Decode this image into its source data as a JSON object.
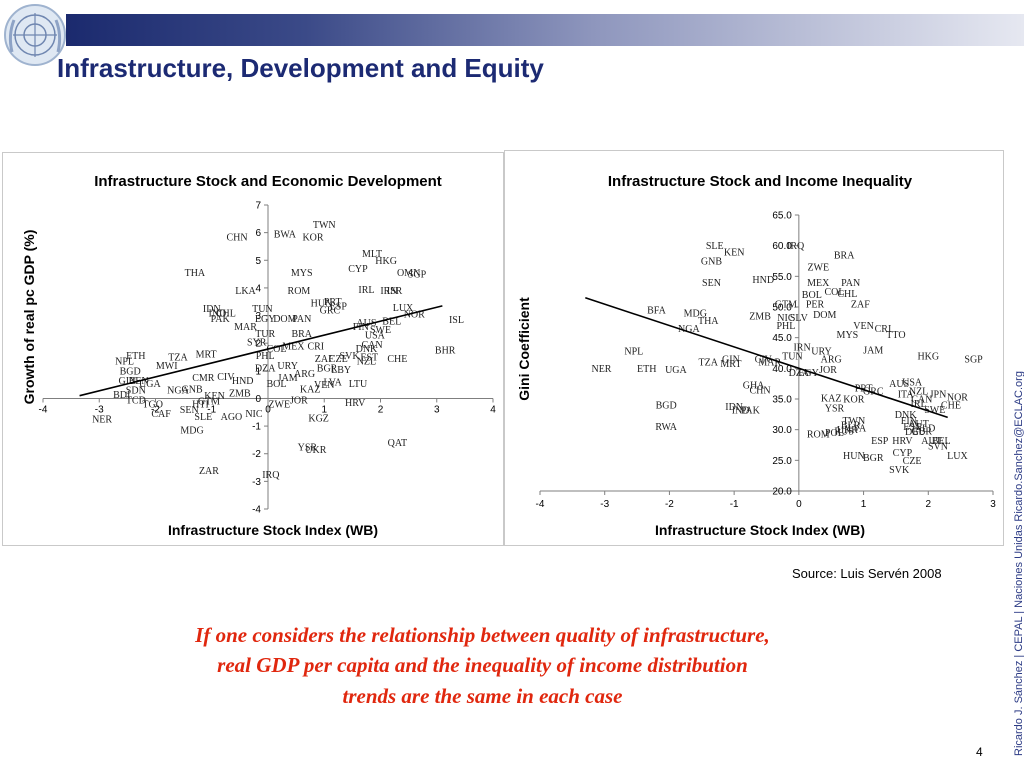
{
  "slide": {
    "title": "Infrastructure, Development and Equity",
    "source": "Source: Luis Servén 2008",
    "quote_lines": [
      "If one considers the relationship between quality of infrastructure,",
      "real GDP per capita and the inequality of income distribution",
      "trends are the same in each case"
    ],
    "sidebar": "Ricardo J. Sánchez | CEPAL | Naciones Unidas   Ricardo.Sanchez@ECLAC.org",
    "page_number": "4",
    "colors": {
      "title": "#1c2a73",
      "quote": "#e0270e",
      "sidebar": "#2c3b85",
      "banner_dark": "#1b2a6e"
    },
    "logo_icon": "un-emblem-icon"
  },
  "chart_data": [
    {
      "type": "scatter",
      "title": "Infrastructure Stock and Economic Development",
      "xlabel": "Infrastructure Stock Index (WB)",
      "ylabel": "Growth of real pc GDP (%)",
      "xlim": [
        -4,
        4
      ],
      "ylim": [
        -4,
        7
      ],
      "xticks": [
        "-4",
        "-3",
        "-2",
        "-1",
        "0",
        "1",
        "2",
        "3",
        "4"
      ],
      "yticks": [
        "-4",
        "-3",
        "-2",
        "-1",
        "0",
        "1",
        "2",
        "3",
        "4",
        "5",
        "6",
        "7"
      ],
      "trendline": {
        "x": [
          -3.35,
          3.1
        ],
        "y": [
          0.1,
          3.35
        ]
      },
      "points": [
        {
          "label": "TWN",
          "x": 1.0,
          "y": 6.3
        },
        {
          "label": "BWA",
          "x": 0.3,
          "y": 5.95
        },
        {
          "label": "KOR",
          "x": 0.8,
          "y": 5.85
        },
        {
          "label": "CHN",
          "x": -0.55,
          "y": 5.85
        },
        {
          "label": "MLT",
          "x": 1.85,
          "y": 5.25
        },
        {
          "label": "HKG",
          "x": 2.1,
          "y": 5.0
        },
        {
          "label": "THA",
          "x": -1.3,
          "y": 4.55
        },
        {
          "label": "MYS",
          "x": 0.6,
          "y": 4.55
        },
        {
          "label": "CYP",
          "x": 1.6,
          "y": 4.7
        },
        {
          "label": "OMN",
          "x": 2.5,
          "y": 4.55
        },
        {
          "label": "SGP",
          "x": 2.65,
          "y": 4.5
        },
        {
          "label": "LKA",
          "x": -0.4,
          "y": 3.9
        },
        {
          "label": "ROM",
          "x": 0.55,
          "y": 3.9
        },
        {
          "label": "IRL",
          "x": 1.75,
          "y": 3.95
        },
        {
          "label": "IRN",
          "x": 2.15,
          "y": 3.9
        },
        {
          "label": "ISR",
          "x": 2.25,
          "y": 3.9
        },
        {
          "label": "IDN",
          "x": -1.0,
          "y": 3.25
        },
        {
          "label": "IND",
          "x": -0.9,
          "y": 3.1
        },
        {
          "label": "CHL",
          "x": -0.75,
          "y": 3.1
        },
        {
          "label": "PAK",
          "x": -0.85,
          "y": 2.9
        },
        {
          "label": "TUN",
          "x": -0.1,
          "y": 3.25
        },
        {
          "label": "EGY",
          "x": -0.05,
          "y": 2.9
        },
        {
          "label": "DOM",
          "x": 0.3,
          "y": 2.9
        },
        {
          "label": "PAN",
          "x": 0.6,
          "y": 2.9
        },
        {
          "label": "HUN",
          "x": 0.95,
          "y": 3.45
        },
        {
          "label": "GRC",
          "x": 1.1,
          "y": 3.2
        },
        {
          "label": "ESP",
          "x": 1.25,
          "y": 3.35
        },
        {
          "label": "PRT",
          "x": 1.15,
          "y": 3.5
        },
        {
          "label": "LUX",
          "x": 2.4,
          "y": 3.3
        },
        {
          "label": "NOR",
          "x": 2.6,
          "y": 3.05
        },
        {
          "label": "ISL",
          "x": 3.35,
          "y": 2.85
        },
        {
          "label": "MAR",
          "x": -0.4,
          "y": 2.6
        },
        {
          "label": "TUR",
          "x": -0.05,
          "y": 2.35
        },
        {
          "label": "BRA",
          "x": 0.6,
          "y": 2.35
        },
        {
          "label": "AUS",
          "x": 1.75,
          "y": 2.75
        },
        {
          "label": "FIN",
          "x": 1.65,
          "y": 2.6
        },
        {
          "label": "BEL",
          "x": 2.2,
          "y": 2.8
        },
        {
          "label": "SWE",
          "x": 2.0,
          "y": 2.5
        },
        {
          "label": "USA",
          "x": 1.9,
          "y": 2.3
        },
        {
          "label": "SYR",
          "x": -0.2,
          "y": 2.05
        },
        {
          "label": "COL",
          "x": 0.15,
          "y": 1.8
        },
        {
          "label": "MEX",
          "x": 0.45,
          "y": 1.9
        },
        {
          "label": "CRI",
          "x": 0.85,
          "y": 1.9
        },
        {
          "label": "CAN",
          "x": 1.85,
          "y": 1.95
        },
        {
          "label": "DNK",
          "x": 1.75,
          "y": 1.8
        },
        {
          "label": "ETH",
          "x": -2.35,
          "y": 1.55
        },
        {
          "label": "NPL",
          "x": -2.55,
          "y": 1.35
        },
        {
          "label": "TZA",
          "x": -1.6,
          "y": 1.5
        },
        {
          "label": "MRT",
          "x": -1.1,
          "y": 1.6
        },
        {
          "label": "PHL",
          "x": -0.05,
          "y": 1.55
        },
        {
          "label": "ZAF",
          "x": 1.0,
          "y": 1.45
        },
        {
          "label": "CZE",
          "x": 1.25,
          "y": 1.45
        },
        {
          "label": "SVK",
          "x": 1.45,
          "y": 1.55
        },
        {
          "label": "EST",
          "x": 1.8,
          "y": 1.5
        },
        {
          "label": "NZL",
          "x": 1.75,
          "y": 1.35
        },
        {
          "label": "CHE",
          "x": 2.3,
          "y": 1.45
        },
        {
          "label": "BHR",
          "x": 3.15,
          "y": 1.75
        },
        {
          "label": "BGD",
          "x": -2.45,
          "y": 1.0
        },
        {
          "label": "MWI",
          "x": -1.8,
          "y": 1.2
        },
        {
          "label": "DZA",
          "x": -0.05,
          "y": 1.1
        },
        {
          "label": "URY",
          "x": 0.35,
          "y": 1.2
        },
        {
          "label": "BGR",
          "x": 1.05,
          "y": 1.1
        },
        {
          "label": "LBY",
          "x": 1.3,
          "y": 1.05
        },
        {
          "label": "GIN",
          "x": -2.5,
          "y": 0.65
        },
        {
          "label": "BEN",
          "x": -2.3,
          "y": 0.65
        },
        {
          "label": "UGA",
          "x": -2.1,
          "y": 0.55
        },
        {
          "label": "CMR",
          "x": -1.15,
          "y": 0.75
        },
        {
          "label": "CIV",
          "x": -0.75,
          "y": 0.8
        },
        {
          "label": "HND",
          "x": -0.45,
          "y": 0.65
        },
        {
          "label": "ARG",
          "x": 0.65,
          "y": 0.9
        },
        {
          "label": "JAM",
          "x": 0.35,
          "y": 0.75
        },
        {
          "label": "LTU",
          "x": 1.6,
          "y": 0.55
        },
        {
          "label": "LVA",
          "x": 1.15,
          "y": 0.6
        },
        {
          "label": "VEN",
          "x": 1.0,
          "y": 0.5
        },
        {
          "label": "SDN",
          "x": -2.35,
          "y": 0.3
        },
        {
          "label": "NGA",
          "x": -1.6,
          "y": 0.3
        },
        {
          "label": "GNB",
          "x": -1.35,
          "y": 0.35
        },
        {
          "label": "KEN",
          "x": -0.95,
          "y": 0.1
        },
        {
          "label": "ZMB",
          "x": -0.5,
          "y": 0.2
        },
        {
          "label": "BOL",
          "x": 0.15,
          "y": 0.55
        },
        {
          "label": "KAZ",
          "x": 0.75,
          "y": 0.35
        },
        {
          "label": "BDI",
          "x": -2.6,
          "y": 0.15
        },
        {
          "label": "TCD",
          "x": -2.35,
          "y": -0.05
        },
        {
          "label": "TGO",
          "x": -2.05,
          "y": -0.2
        },
        {
          "label": "HTI",
          "x": -1.2,
          "y": -0.2
        },
        {
          "label": "GTM",
          "x": -1.05,
          "y": -0.1
        },
        {
          "label": "JOR",
          "x": 0.55,
          "y": -0.05
        },
        {
          "label": "ZWE",
          "x": 0.2,
          "y": -0.2
        },
        {
          "label": "HRV",
          "x": 1.55,
          "y": -0.15
        },
        {
          "label": "CAF",
          "x": -1.9,
          "y": -0.55
        },
        {
          "label": "SEN",
          "x": -1.4,
          "y": -0.4
        },
        {
          "label": "SLE",
          "x": -1.15,
          "y": -0.65
        },
        {
          "label": "AGO",
          "x": -0.65,
          "y": -0.65
        },
        {
          "label": "NIC",
          "x": -0.25,
          "y": -0.55
        },
        {
          "label": "KGZ",
          "x": 0.9,
          "y": -0.7
        },
        {
          "label": "NER",
          "x": -2.95,
          "y": -0.75
        },
        {
          "label": "MDG",
          "x": -1.35,
          "y": -1.15
        },
        {
          "label": "YSR",
          "x": 0.7,
          "y": -1.75
        },
        {
          "label": "UKR",
          "x": 0.85,
          "y": -1.85
        },
        {
          "label": "QAT",
          "x": 2.3,
          "y": -1.6
        },
        {
          "label": "ZAR",
          "x": -1.05,
          "y": -2.6
        },
        {
          "label": "IRQ",
          "x": 0.05,
          "y": -2.75
        }
      ]
    },
    {
      "type": "scatter",
      "title": "Infrastructure Stock and Income Inequality",
      "xlabel": "Infrastructure Stock Index (WB)",
      "ylabel": "Gini Coefficient",
      "xlim": [
        -4,
        3
      ],
      "ylim": [
        20.0,
        65.0
      ],
      "xticks": [
        "-4",
        "-3",
        "-2",
        "-1",
        "0",
        "1",
        "2",
        "3"
      ],
      "yticks": [
        "20.0",
        "25.0",
        "30.0",
        "35.0",
        "40.0",
        "45.0",
        "50.0",
        "55.0",
        "60.0",
        "65.0"
      ],
      "trendline": {
        "x": [
          -3.3,
          2.3
        ],
        "y": [
          51.5,
          32.0
        ]
      },
      "points": [
        {
          "label": "SLE",
          "x": -1.3,
          "y": 60.0
        },
        {
          "label": "IRQ",
          "x": -0.05,
          "y": 60.0
        },
        {
          "label": "KEN",
          "x": -1.0,
          "y": 59.0
        },
        {
          "label": "GNB",
          "x": -1.35,
          "y": 57.5
        },
        {
          "label": "BRA",
          "x": 0.7,
          "y": 58.5
        },
        {
          "label": "ZWE",
          "x": 0.3,
          "y": 56.5
        },
        {
          "label": "HND",
          "x": -0.55,
          "y": 54.5
        },
        {
          "label": "SEN",
          "x": -1.35,
          "y": 54.0
        },
        {
          "label": "MEX",
          "x": 0.3,
          "y": 54.0
        },
        {
          "label": "PAN",
          "x": 0.8,
          "y": 54.0
        },
        {
          "label": "BOL",
          "x": 0.2,
          "y": 52.0
        },
        {
          "label": "COL",
          "x": 0.55,
          "y": 52.5
        },
        {
          "label": "CHL",
          "x": 0.75,
          "y": 52.2
        },
        {
          "label": "ZAF",
          "x": 0.95,
          "y": 50.5
        },
        {
          "label": "GTM",
          "x": -0.2,
          "y": 50.5
        },
        {
          "label": "PER",
          "x": 0.25,
          "y": 50.5
        },
        {
          "label": "BFA",
          "x": -2.2,
          "y": 49.5
        },
        {
          "label": "MDG",
          "x": -1.6,
          "y": 49.0
        },
        {
          "label": "THA",
          "x": -1.4,
          "y": 47.8
        },
        {
          "label": "ZMB",
          "x": -0.6,
          "y": 48.5
        },
        {
          "label": "NIC",
          "x": -0.2,
          "y": 48.3
        },
        {
          "label": "SLV",
          "x": 0.0,
          "y": 48.3
        },
        {
          "label": "DOM",
          "x": 0.4,
          "y": 48.8
        },
        {
          "label": "PHL",
          "x": -0.2,
          "y": 47.0
        },
        {
          "label": "NGA",
          "x": -1.7,
          "y": 46.5
        },
        {
          "label": "VEN",
          "x": 1.0,
          "y": 47.0
        },
        {
          "label": "CRI",
          "x": 1.3,
          "y": 46.5
        },
        {
          "label": "MYS",
          "x": 0.75,
          "y": 45.5
        },
        {
          "label": "TTO",
          "x": 1.5,
          "y": 45.5
        },
        {
          "label": "IRN",
          "x": 0.05,
          "y": 43.5
        },
        {
          "label": "URY",
          "x": 0.35,
          "y": 42.8
        },
        {
          "label": "JAM",
          "x": 1.15,
          "y": 43.0
        },
        {
          "label": "NPL",
          "x": -2.55,
          "y": 42.8
        },
        {
          "label": "HKG",
          "x": 2.0,
          "y": 42.0
        },
        {
          "label": "SGP",
          "x": 2.7,
          "y": 41.5
        },
        {
          "label": "ARG",
          "x": 0.5,
          "y": 41.5
        },
        {
          "label": "TUN",
          "x": -0.1,
          "y": 42.0
        },
        {
          "label": "GIN",
          "x": -1.05,
          "y": 41.5
        },
        {
          "label": "CIV",
          "x": -0.55,
          "y": 41.5
        },
        {
          "label": "TZA",
          "x": -1.4,
          "y": 41.0
        },
        {
          "label": "MRT",
          "x": -1.05,
          "y": 40.8
        },
        {
          "label": "MAR",
          "x": -0.45,
          "y": 41.0
        },
        {
          "label": "JOR",
          "x": 0.45,
          "y": 39.8
        },
        {
          "label": "NER",
          "x": -3.05,
          "y": 40.0
        },
        {
          "label": "ETH",
          "x": -2.35,
          "y": 40.0
        },
        {
          "label": "UGA",
          "x": -1.9,
          "y": 39.8
        },
        {
          "label": "DZA",
          "x": 0.0,
          "y": 39.3
        },
        {
          "label": "EGY",
          "x": 0.15,
          "y": 39.3
        },
        {
          "label": "GHA",
          "x": -0.7,
          "y": 37.3
        },
        {
          "label": "CHN",
          "x": -0.6,
          "y": 36.5
        },
        {
          "label": "PRT",
          "x": 1.0,
          "y": 36.8
        },
        {
          "label": "GRC",
          "x": 1.15,
          "y": 36.3
        },
        {
          "label": "AUS",
          "x": 1.55,
          "y": 37.5
        },
        {
          "label": "USA",
          "x": 1.75,
          "y": 37.8
        },
        {
          "label": "NZL",
          "x": 1.85,
          "y": 36.3
        },
        {
          "label": "ITA",
          "x": 1.65,
          "y": 35.8
        },
        {
          "label": "JPN",
          "x": 2.15,
          "y": 35.8
        },
        {
          "label": "NOR",
          "x": 2.45,
          "y": 35.3
        },
        {
          "label": "KAZ",
          "x": 0.5,
          "y": 35.2
        },
        {
          "label": "KOR",
          "x": 0.85,
          "y": 35.0
        },
        {
          "label": "CAN",
          "x": 1.9,
          "y": 35.0
        },
        {
          "label": "IRL",
          "x": 1.85,
          "y": 34.3
        },
        {
          "label": "SWE",
          "x": 2.1,
          "y": 33.3
        },
        {
          "label": "CHE",
          "x": 2.35,
          "y": 34.0
        },
        {
          "label": "BGD",
          "x": -2.05,
          "y": 34.0
        },
        {
          "label": "IDN",
          "x": -1.0,
          "y": 33.8
        },
        {
          "label": "IND",
          "x": -0.9,
          "y": 33.2
        },
        {
          "label": "PAK",
          "x": -0.75,
          "y": 33.2
        },
        {
          "label": "YSR",
          "x": 0.55,
          "y": 33.5
        },
        {
          "label": "TWN",
          "x": 0.85,
          "y": 31.5
        },
        {
          "label": "BLR",
          "x": 0.8,
          "y": 30.8
        },
        {
          "label": "DNK",
          "x": 1.65,
          "y": 32.5
        },
        {
          "label": "FIN",
          "x": 1.7,
          "y": 31.5
        },
        {
          "label": "AUT",
          "x": 1.85,
          "y": 31.0
        },
        {
          "label": "NLD",
          "x": 1.95,
          "y": 30.3
        },
        {
          "label": "RWA",
          "x": -2.05,
          "y": 30.5
        },
        {
          "label": "ROM",
          "x": 0.3,
          "y": 29.3
        },
        {
          "label": "POL",
          "x": 0.55,
          "y": 29.5
        },
        {
          "label": "RUS",
          "x": 0.7,
          "y": 29.8
        },
        {
          "label": "UKR",
          "x": 0.75,
          "y": 30.0
        },
        {
          "label": "DEU",
          "x": 1.8,
          "y": 29.7
        },
        {
          "label": "LVA",
          "x": 0.9,
          "y": 30.3
        },
        {
          "label": "EST",
          "x": 1.75,
          "y": 30.5
        },
        {
          "label": "GBR",
          "x": 1.9,
          "y": 29.8
        },
        {
          "label": "ESP",
          "x": 1.25,
          "y": 28.2
        },
        {
          "label": "HRV",
          "x": 1.6,
          "y": 28.2
        },
        {
          "label": "AUT",
          "x": 2.05,
          "y": 28.2
        },
        {
          "label": "BEL",
          "x": 2.2,
          "y": 28.2
        },
        {
          "label": "SVN",
          "x": 2.15,
          "y": 27.3
        },
        {
          "label": "CYP",
          "x": 1.6,
          "y": 26.3
        },
        {
          "label": "HUN",
          "x": 0.85,
          "y": 25.8
        },
        {
          "label": "BGR",
          "x": 1.15,
          "y": 25.5
        },
        {
          "label": "CZE",
          "x": 1.75,
          "y": 25.0
        },
        {
          "label": "LUX",
          "x": 2.45,
          "y": 25.8
        },
        {
          "label": "SVK",
          "x": 1.55,
          "y": 23.5
        }
      ]
    }
  ]
}
